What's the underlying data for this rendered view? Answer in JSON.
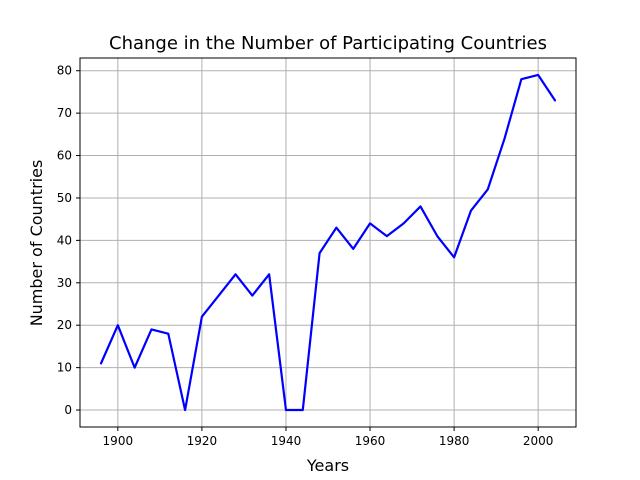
{
  "chart_data": {
    "type": "line",
    "title": "Change in the Number of Participating Countries",
    "xlabel": "Years",
    "ylabel": "Number of Countries",
    "xlim": [
      1891,
      2009
    ],
    "ylim": [
      -4,
      83
    ],
    "xticks": [
      1900,
      1920,
      1940,
      1960,
      1980,
      2000
    ],
    "yticks": [
      0,
      10,
      20,
      30,
      40,
      50,
      60,
      70,
      80
    ],
    "grid": true,
    "series": [
      {
        "color": "#0000ff",
        "x": [
          1896,
          1900,
          1904,
          1908,
          1912,
          1916,
          1920,
          1924,
          1928,
          1932,
          1936,
          1940,
          1944,
          1948,
          1952,
          1956,
          1960,
          1964,
          1968,
          1972,
          1976,
          1980,
          1984,
          1988,
          1992,
          1996,
          2000,
          2004
        ],
        "y": [
          11,
          20,
          10,
          19,
          18,
          0,
          22,
          27,
          32,
          27,
          32,
          0,
          0,
          37,
          43,
          38,
          44,
          41,
          44,
          48,
          41,
          36,
          47,
          52,
          64,
          78,
          79,
          73
        ]
      }
    ]
  }
}
